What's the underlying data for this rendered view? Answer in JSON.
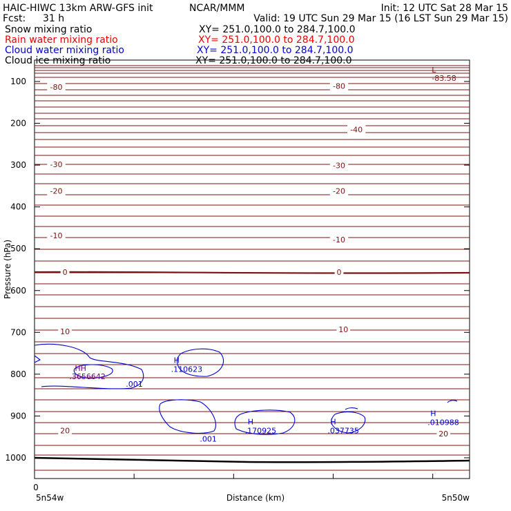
{
  "header": {
    "model": "HAIC-HIWC 13km ARW-GFS init",
    "org": "NCAR/MMM",
    "init": "Init: 12 UTC Sat 28 Mar 15",
    "fcst_label": "Fcst:",
    "fcst_value": "31 h",
    "valid": "Valid: 19 UTC Sun 29 Mar 15 (16 LST Sun 29 Mar 15)"
  },
  "fields": [
    {
      "name": "Snow mixing ratio",
      "xy": "XY= 251.0,100.0 to 284.7,100.0",
      "color": "#000000"
    },
    {
      "name": "Rain water mixing ratio",
      "xy": "XY= 251.0,100.0 to 284.7,100.0",
      "color": "#ee0000"
    },
    {
      "name": "Cloud water mixing ratio",
      "xy": "XY= 251.0,100.0 to 284.7,100.0",
      "color": "#0000cc"
    },
    {
      "name": "Cloud ice mixing ratio",
      "xy": "XY= 251.0,100.0 to 284.7,100.0",
      "color": "#000000"
    }
  ],
  "chart_data": {
    "type": "cross-section contour",
    "ylabel": "Pressure (hPa)",
    "xlabel": "Distance (km)",
    "y_ticks": [
      "100",
      "200",
      "300",
      "400",
      "500",
      "600",
      "700",
      "800",
      "900",
      "1000"
    ],
    "x_origin_label": "0",
    "x_left_label": "5n54w",
    "x_right_label": "5n50w",
    "ylim": [
      50,
      1050
    ],
    "temperature_color": "#7a1010",
    "cloud_color": "#0000cc",
    "temperature_labels": [
      {
        "text": "-80",
        "x": 0.05,
        "p": 113
      },
      {
        "text": "-80",
        "x": 0.7,
        "p": 111
      },
      {
        "text": "-40",
        "x": 0.74,
        "p": 215
      },
      {
        "text": "-30",
        "x": 0.05,
        "p": 298
      },
      {
        "text": "-30",
        "x": 0.7,
        "p": 301
      },
      {
        "text": "-20",
        "x": 0.05,
        "p": 362
      },
      {
        "text": "-20",
        "x": 0.7,
        "p": 362
      },
      {
        "text": "-10",
        "x": 0.05,
        "p": 468
      },
      {
        "text": "-10",
        "x": 0.7,
        "p": 478
      },
      {
        "text": "0",
        "x": 0.07,
        "p": 556
      },
      {
        "text": "0",
        "x": 0.7,
        "p": 556
      },
      {
        "text": "10",
        "x": 0.07,
        "p": 698
      },
      {
        "text": "10",
        "x": 0.71,
        "p": 693
      },
      {
        "text": "20",
        "x": 0.07,
        "p": 935
      },
      {
        "text": "20",
        "x": 0.94,
        "p": 942
      }
    ],
    "low_marker": {
      "label": "L",
      "value": "-83.58",
      "x": 0.91,
      "p": 72
    },
    "highs": [
      {
        "label": "H",
        "value": ".110623",
        "x": 0.32,
        "p": 773
      },
      {
        "label": "H",
        "value": ".170925",
        "x": 0.49,
        "p": 920
      },
      {
        "label": "H",
        "value": ".037735",
        "x": 0.68,
        "p": 920
      },
      {
        "label": "H",
        "value": ".010988",
        "x": 0.91,
        "p": 900
      }
    ],
    "cloud_contour_labels": [
      {
        "text": ".001",
        "x": 0.21,
        "p": 823
      },
      {
        "text": ".001",
        "x": 0.38,
        "p": 955
      }
    ],
    "overlap_label": {
      "text": ".3656642",
      "x": 0.08,
      "p": 805
    }
  }
}
